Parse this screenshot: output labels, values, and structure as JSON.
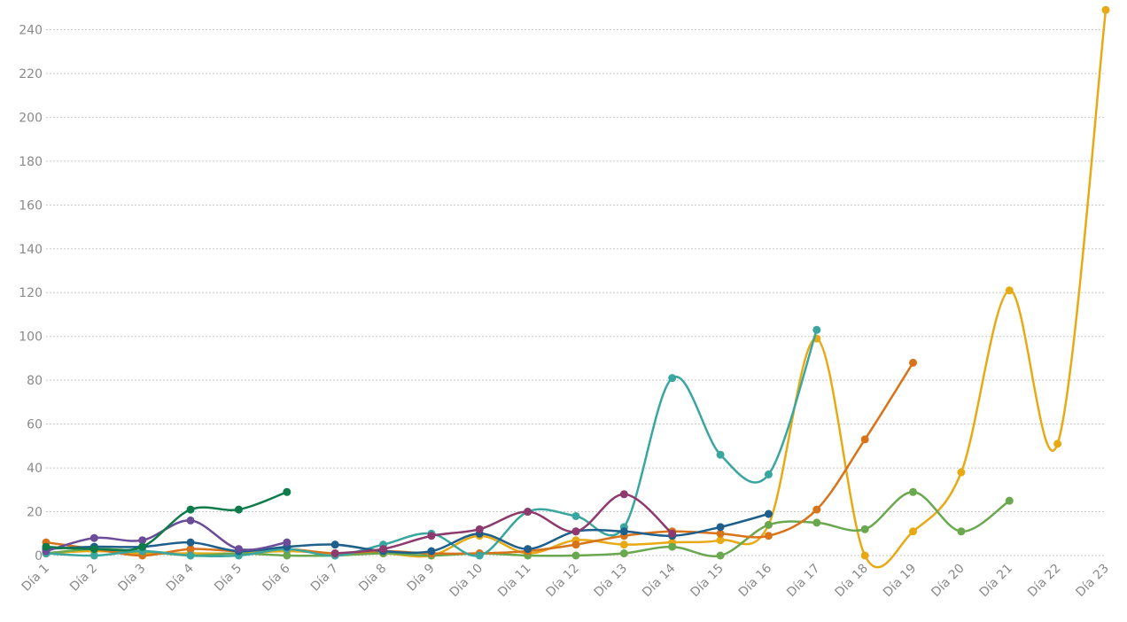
{
  "chart_data": {
    "type": "line",
    "categories": [
      "Día 1",
      "Día 2",
      "Día 3",
      "Día 4",
      "Día 5",
      "Día 6",
      "Día 7",
      "Día 8",
      "Día 9",
      "Día 10",
      "Día 11",
      "Día 12",
      "Día 13",
      "Día 14",
      "Día 15",
      "Día 16",
      "Día 17",
      "Día 18",
      "Día 19",
      "Día 20",
      "Día 21",
      "Día 22",
      "Día 23"
    ],
    "series": [
      {
        "color": "#e8aa14",
        "values": [
          1,
          2,
          1,
          1,
          1,
          2,
          1,
          1,
          0,
          9,
          1,
          7,
          5,
          6,
          7,
          14,
          99,
          0,
          11,
          38,
          121,
          51,
          249
        ]
      },
      {
        "color": "#6aa84f",
        "values": [
          1,
          3,
          2,
          0,
          1,
          0,
          0,
          1,
          0,
          1,
          0,
          0,
          1,
          4,
          0,
          14,
          15,
          12,
          29,
          11,
          25,
          null,
          null
        ]
      },
      {
        "color": "#d9731a",
        "values": [
          6,
          3,
          0,
          3,
          2,
          3,
          1,
          2,
          1,
          1,
          2,
          5,
          9,
          11,
          10,
          9,
          21,
          53,
          88,
          null,
          null,
          null,
          null
        ]
      },
      {
        "color": "#3aa6a0",
        "values": [
          1,
          0,
          2,
          0,
          0,
          3,
          0,
          5,
          10,
          0,
          20,
          18,
          13,
          81,
          46,
          37,
          103,
          null,
          null,
          null,
          null,
          null,
          null
        ]
      },
      {
        "color": "#1f5f8b",
        "values": [
          3,
          4,
          4,
          6,
          2,
          4,
          5,
          2,
          2,
          10,
          3,
          11,
          11,
          9,
          13,
          19,
          null,
          null,
          null,
          null,
          null,
          null,
          null
        ]
      },
      {
        "color": "#8e3a6e",
        "values": [
          null,
          null,
          null,
          null,
          null,
          null,
          1,
          3,
          9,
          12,
          20,
          11,
          28,
          10,
          null,
          null,
          null,
          null,
          null,
          null,
          null,
          null,
          null
        ]
      },
      {
        "color": "#6b4c9a",
        "values": [
          2,
          8,
          7,
          16,
          3,
          6,
          null,
          null,
          null,
          null,
          null,
          null,
          null,
          null,
          null,
          null,
          null,
          null,
          null,
          null,
          null,
          null,
          null
        ]
      },
      {
        "color": "#0e7c4a",
        "values": [
          4,
          3,
          4,
          21,
          21,
          29,
          null,
          null,
          null,
          null,
          null,
          null,
          null,
          null,
          null,
          null,
          null,
          null,
          null,
          null,
          null,
          null,
          null
        ]
      }
    ],
    "ylim": [
      0,
      250
    ],
    "yticks": [
      0,
      20,
      40,
      60,
      80,
      100,
      120,
      140,
      160,
      180,
      200,
      220,
      240
    ],
    "grid": true
  }
}
